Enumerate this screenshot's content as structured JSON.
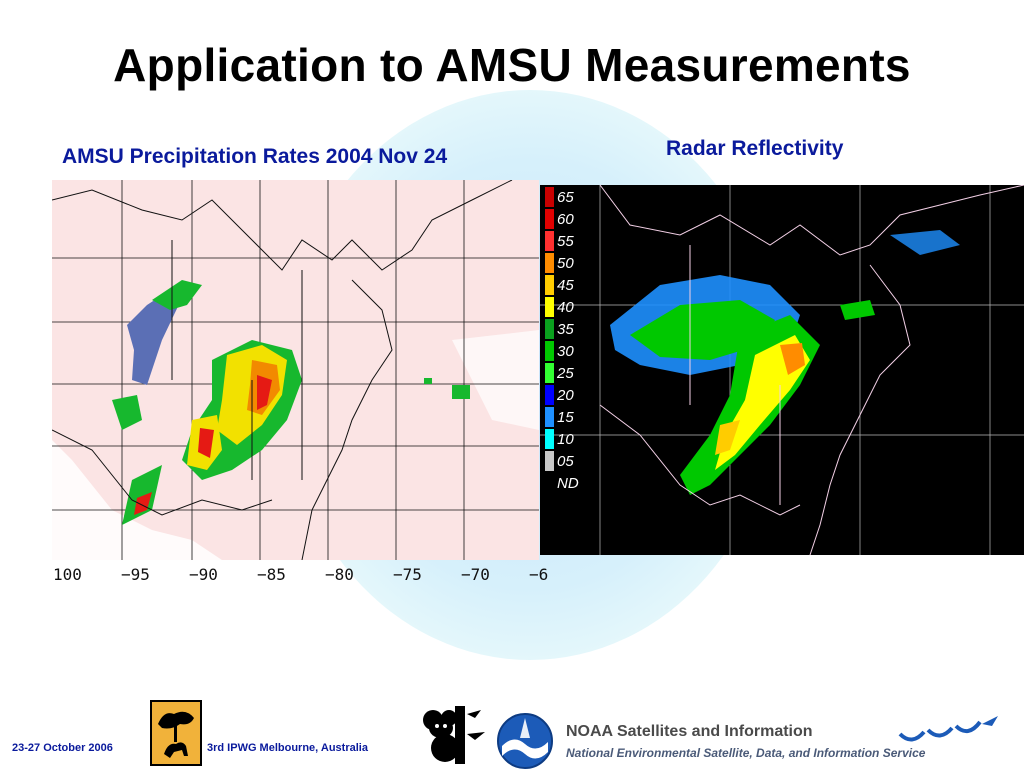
{
  "slide": {
    "title": "Application to AMSU Measurements",
    "amsu_panel_title": "AMSU Precipitation Rates   2004 Nov 24",
    "radar_panel_title": "Radar Reflectivity"
  },
  "amsu_map": {
    "longitude_ticks": [
      "100",
      "−95",
      "−90",
      "−85",
      "−80",
      "−75",
      "−70",
      "−6"
    ],
    "colors": {
      "background": "#fbe4e4",
      "blue": "#5b6fb5",
      "green": "#17b82e",
      "yellow": "#f2e100",
      "orange": "#f28a00",
      "red": "#e51a14"
    }
  },
  "radar_map": {
    "legend": [
      "65",
      "60",
      "55",
      "50",
      "45",
      "40",
      "35",
      "30",
      "25",
      "20",
      "15",
      "10",
      "05",
      "ND"
    ],
    "legend_colors": [
      "#c80000",
      "#e00000",
      "#ff3030",
      "#ff8c00",
      "#ffcc00",
      "#ffff00",
      "#0aa01e",
      "#00c800",
      "#32ff32",
      "#0000ff",
      "#1e90ff",
      "#00ffff",
      "#c8c8c8",
      "#000000"
    ]
  },
  "footer": {
    "date": "23-27 October 2006",
    "conference": "3rd IPWG  Melbourne, Australia",
    "noaa_name": "NOAA Satellites and Information",
    "noaa_subtitle": "National Environmental Satellite, Data, and Information Service"
  }
}
